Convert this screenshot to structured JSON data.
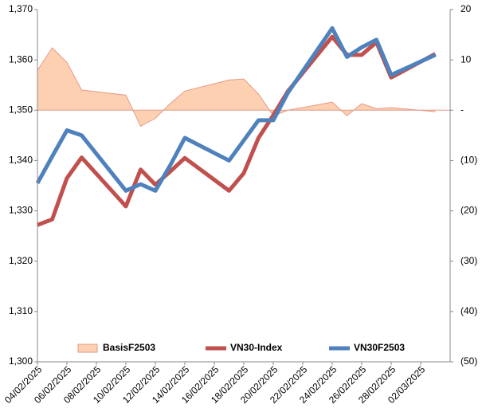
{
  "chart_data": {
    "type": "line",
    "x": [
      "04/02/2025",
      "05/02/2025",
      "06/02/2025",
      "07/02/2025",
      "10/02/2025",
      "11/02/2025",
      "12/02/2025",
      "13/02/2025",
      "14/02/2025",
      "17/02/2025",
      "18/02/2025",
      "19/02/2025",
      "20/02/2025",
      "21/02/2025",
      "24/02/2025",
      "25/02/2025",
      "26/02/2025",
      "27/02/2025",
      "28/02/2025",
      "03/03/2025"
    ],
    "series": [
      {
        "name": "BasisF2503",
        "kind": "area",
        "axis": "y2",
        "color": "#fdd0b1",
        "edge": "#e49a86",
        "values": [
          7.9,
          12.4,
          9.5,
          4.0,
          3.0,
          -3.2,
          -1.6,
          1.3,
          3.8,
          6.0,
          6.2,
          3.2,
          -1.1,
          0.0,
          1.6,
          -1.1,
          1.3,
          0.3,
          0.5,
          -0.3
        ]
      },
      {
        "name": "VN30-Index",
        "kind": "line",
        "color": "#c0504d",
        "values": [
          1327.2,
          1328.3,
          1336.5,
          1340.6,
          1330.9,
          1338.2,
          1335.2,
          1337.8,
          1340.5,
          1334.0,
          1337.5,
          1344.5,
          1349.0,
          1353.8,
          1364.6,
          1361.0,
          1361.0,
          1363.5,
          1356.5,
          1361.2
        ]
      },
      {
        "name": "VN30F2503",
        "kind": "line",
        "color": "#4f81bd",
        "values": [
          1335.5,
          1340.8,
          1346.0,
          1345.0,
          1334.0,
          1335.3,
          1334.0,
          1339.0,
          1344.5,
          1340.0,
          1344.0,
          1348.0,
          1348.0,
          1353.5,
          1366.3,
          1360.6,
          1362.5,
          1364.0,
          1357.0,
          1361.0
        ]
      }
    ],
    "xlim": [
      "04/02/2025",
      "04/03/2025"
    ],
    "xticks": [
      "04/02/2025",
      "06/02/2025",
      "08/02/2025",
      "10/02/2025",
      "12/02/2025",
      "14/02/2025",
      "16/02/2025",
      "18/02/2025",
      "20/02/2025",
      "22/02/2025",
      "24/02/2025",
      "26/02/2025",
      "28/02/2025",
      "02/03/2025"
    ],
    "ylim": [
      1300,
      1370
    ],
    "yticks": [
      {
        "value": 1300,
        "label": "1,300"
      },
      {
        "value": 1310,
        "label": "1,310"
      },
      {
        "value": 1320,
        "label": "1,320"
      },
      {
        "value": 1330,
        "label": "1,330"
      },
      {
        "value": 1340,
        "label": "1,340"
      },
      {
        "value": 1350,
        "label": "1,350"
      },
      {
        "value": 1360,
        "label": "1,360"
      },
      {
        "value": 1370,
        "label": "1,370"
      }
    ],
    "y2lim": [
      -50,
      20
    ],
    "y2ticks": [
      {
        "value": -50,
        "label": "(50)"
      },
      {
        "value": -40,
        "label": "(40)"
      },
      {
        "value": -30,
        "label": "(30)"
      },
      {
        "value": -20,
        "label": "(20)"
      },
      {
        "value": -10,
        "label": "(10)"
      },
      {
        "value": 0,
        "label": "-"
      },
      10,
      20
    ],
    "legend": "bottom"
  }
}
